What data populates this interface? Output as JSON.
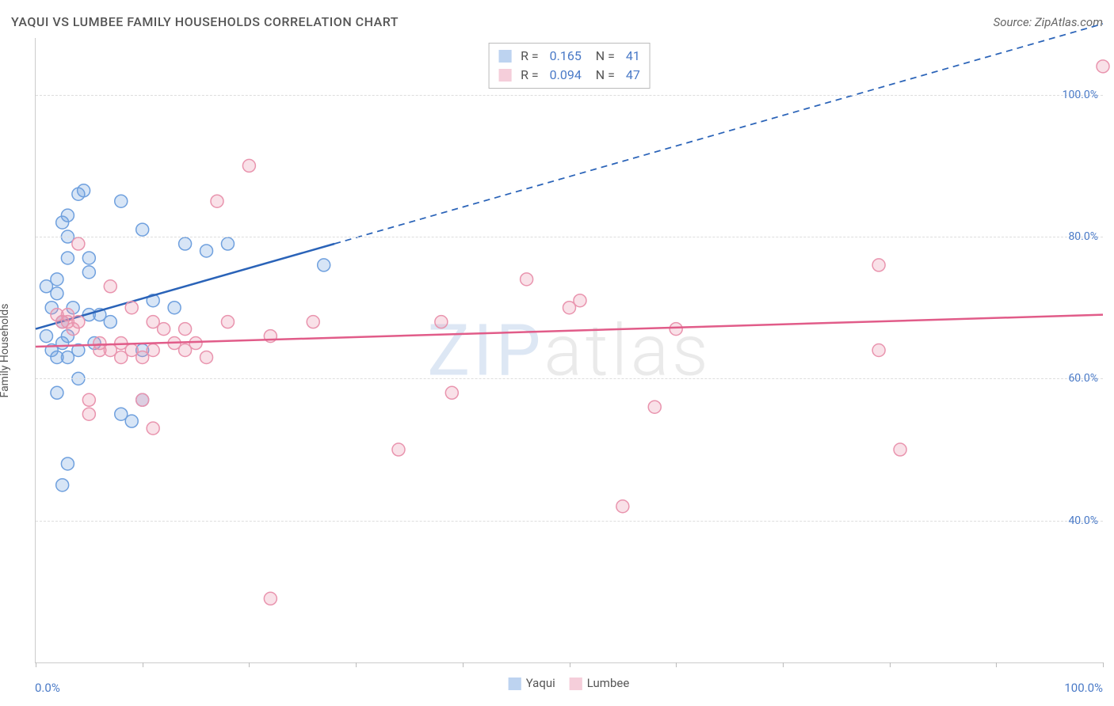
{
  "header": {
    "title": "YAQUI VS LUMBEE FAMILY HOUSEHOLDS CORRELATION CHART",
    "source": "Source: ZipAtlas.com"
  },
  "chart": {
    "type": "scatter",
    "ylabel": "Family Households",
    "xlim": [
      0,
      100
    ],
    "ylim": [
      20,
      108
    ],
    "x_axis_min_label": "0.0%",
    "x_axis_max_label": "100.0%",
    "xtick_positions": [
      0,
      10,
      20,
      30,
      40,
      50,
      60,
      70,
      80,
      90,
      100
    ],
    "y_gridlines": [
      {
        "value": 40,
        "label": "40.0%"
      },
      {
        "value": 60,
        "label": "60.0%"
      },
      {
        "value": 80,
        "label": "80.0%"
      },
      {
        "value": 100,
        "label": "100.0%"
      }
    ],
    "background_color": "#ffffff",
    "grid_color": "#dddddd",
    "axis_color": "#cccccc",
    "tick_label_color": "#4a7ac7",
    "label_fontsize": 14,
    "title_fontsize": 16,
    "watermark": {
      "part1": "ZIP",
      "part2": "atlas"
    },
    "marker_radius": 8,
    "marker_stroke_width": 1.5,
    "marker_fill_opacity": 0.28,
    "line_width": 2.5,
    "dash_pattern": "8 6",
    "series": [
      {
        "name": "Yaqui",
        "color": "#6fa0de",
        "line_color": "#2a63b8",
        "R": "0.165",
        "N": "41",
        "regression": {
          "x1": 0,
          "y1": 67,
          "x2_solid": 28,
          "y2_solid": 79,
          "x2_dash": 100,
          "y2_dash": 110
        },
        "points": [
          [
            1,
            73
          ],
          [
            1.5,
            70
          ],
          [
            2,
            72
          ],
          [
            2,
            74
          ],
          [
            2.5,
            68
          ],
          [
            2.5,
            82
          ],
          [
            3,
            83
          ],
          [
            3,
            80
          ],
          [
            3,
            77
          ],
          [
            4,
            86
          ],
          [
            4.5,
            86.5
          ],
          [
            5,
            77
          ],
          [
            5,
            75
          ],
          [
            3.5,
            70
          ],
          [
            3,
            66
          ],
          [
            4,
            64
          ],
          [
            4,
            60
          ],
          [
            1,
            66
          ],
          [
            1.5,
            64
          ],
          [
            2,
            63
          ],
          [
            2.5,
            65
          ],
          [
            3,
            63
          ],
          [
            5,
            69
          ],
          [
            5.5,
            65
          ],
          [
            2,
            58
          ],
          [
            3,
            48
          ],
          [
            2.5,
            45
          ],
          [
            6,
            69
          ],
          [
            7,
            68
          ],
          [
            8,
            55
          ],
          [
            8,
            85
          ],
          [
            9,
            54
          ],
          [
            10,
            81
          ],
          [
            10,
            64
          ],
          [
            10,
            57
          ],
          [
            11,
            71
          ],
          [
            13,
            70
          ],
          [
            14,
            79
          ],
          [
            16,
            78
          ],
          [
            18,
            79
          ],
          [
            27,
            76
          ]
        ]
      },
      {
        "name": "Lumbee",
        "color": "#e994ae",
        "line_color": "#e15c89",
        "R": "0.094",
        "N": "47",
        "regression": {
          "x1": 0,
          "y1": 64.5,
          "x2_solid": 100,
          "y2_solid": 69,
          "x2_dash": 100,
          "y2_dash": 69
        },
        "points": [
          [
            2,
            69
          ],
          [
            2.5,
            68
          ],
          [
            3,
            69
          ],
          [
            3,
            68
          ],
          [
            3.5,
            67
          ],
          [
            4,
            68
          ],
          [
            4,
            79
          ],
          [
            5,
            57
          ],
          [
            5,
            55
          ],
          [
            6,
            65
          ],
          [
            6,
            64
          ],
          [
            7,
            64
          ],
          [
            7,
            73
          ],
          [
            8,
            65
          ],
          [
            8,
            63
          ],
          [
            9,
            70
          ],
          [
            9,
            64
          ],
          [
            10,
            63
          ],
          [
            10,
            57
          ],
          [
            11,
            64
          ],
          [
            11,
            68
          ],
          [
            11,
            53
          ],
          [
            12,
            67
          ],
          [
            13,
            65
          ],
          [
            14,
            67
          ],
          [
            14,
            64
          ],
          [
            15,
            65
          ],
          [
            16,
            63
          ],
          [
            17,
            85
          ],
          [
            18,
            68
          ],
          [
            20,
            90
          ],
          [
            22,
            66
          ],
          [
            22,
            29
          ],
          [
            26,
            68
          ],
          [
            34,
            50
          ],
          [
            38,
            68
          ],
          [
            39,
            58
          ],
          [
            46,
            74
          ],
          [
            50,
            70
          ],
          [
            51,
            71
          ],
          [
            55,
            42
          ],
          [
            58,
            56
          ],
          [
            60,
            67
          ],
          [
            79,
            76
          ],
          [
            79,
            64
          ],
          [
            81,
            50
          ],
          [
            100,
            104
          ]
        ]
      }
    ],
    "bottom_legend": [
      {
        "label": "Yaqui",
        "color": "#6fa0de"
      },
      {
        "label": "Lumbee",
        "color": "#e994ae"
      }
    ]
  }
}
